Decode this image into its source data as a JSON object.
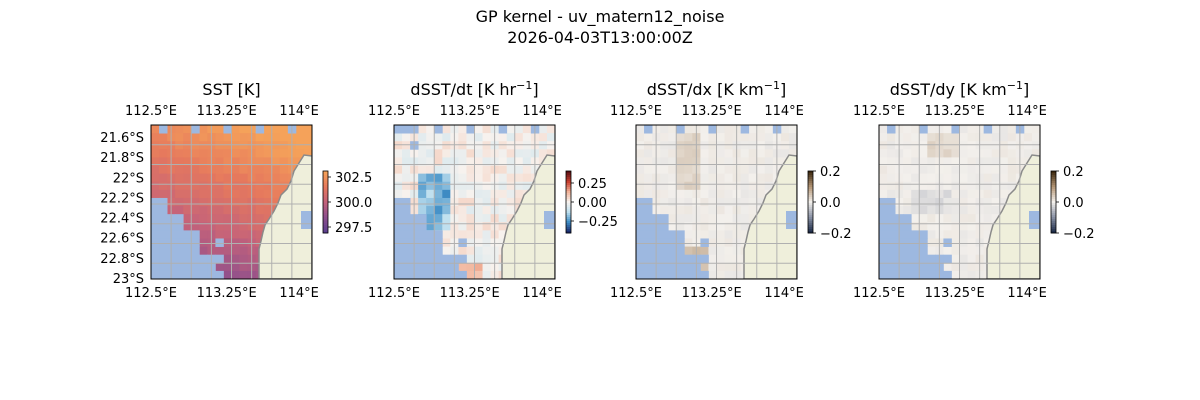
{
  "figure": {
    "title_line1": "GP kernel - uv_matern12_noise",
    "title_line2": "2026-04-03T13:00:00Z"
  },
  "colors": {
    "land": "#efefdb",
    "coast": "#8a8a8a",
    "ocean_mask": "#9db8e0",
    "grid": "#b0b0b0",
    "sst_colormap": [
      "#5c3f8f",
      "#8e4f8c",
      "#c4627a",
      "#e6795d",
      "#f5a25a"
    ],
    "balance_colormap": [
      "#1a2a6c",
      "#3f8ec6",
      "#bfe0ef",
      "#f7f2ee",
      "#f2b49a",
      "#c8402f",
      "#5e1014"
    ],
    "diff_colormap": [
      "#1f2d4a",
      "#8b93a6",
      "#f3f0ec",
      "#b49676",
      "#3e2a10"
    ]
  },
  "chart_data": [
    {
      "type": "heatmap",
      "title": "SST [K]",
      "lon_range": [
        112.5,
        114.1
      ],
      "lat_range": [
        -23.0,
        -21.5
      ],
      "x_ticks": [
        "112.5°E",
        "113.25°E",
        "114°E"
      ],
      "y_ticks": [
        "21.6°S",
        "21.8°S",
        "22°S",
        "22.2°S",
        "22.4°S",
        "22.6°S",
        "22.8°S",
        "23°S"
      ],
      "colorbar": {
        "range": [
          297.0,
          303.5
        ],
        "ticks": [
          "302.5",
          "300.0",
          "297.5"
        ]
      },
      "grid": true
    },
    {
      "type": "heatmap",
      "title": "dSST/dt [K hr",
      "title_sup": "−1",
      "title_end": "]",
      "lon_range": [
        112.5,
        114.1
      ],
      "lat_range": [
        -23.0,
        -21.5
      ],
      "x_ticks": [
        "112.5°E",
        "113.25°E",
        "114°E"
      ],
      "colorbar": {
        "range": [
          -0.4,
          0.4
        ],
        "ticks": [
          "0.25",
          "0.00",
          "−0.25"
        ]
      },
      "grid": true
    },
    {
      "type": "heatmap",
      "title": "dSST/dx [K km",
      "title_sup": "−1",
      "title_end": "]",
      "lon_range": [
        112.5,
        114.1
      ],
      "lat_range": [
        -23.0,
        -21.5
      ],
      "x_ticks": [
        "112.5°E",
        "113.25°E",
        "114°E"
      ],
      "colorbar": {
        "range": [
          -0.2,
          0.2
        ],
        "ticks": [
          "0.2",
          "0.0",
          "−0.2"
        ]
      },
      "grid": true
    },
    {
      "type": "heatmap",
      "title": "dSST/dy [K km",
      "title_sup": "−1",
      "title_end": "]",
      "lon_range": [
        112.5,
        114.1
      ],
      "lat_range": [
        -23.0,
        -21.5
      ],
      "x_ticks": [
        "112.5°E",
        "113.25°E",
        "114°E"
      ],
      "colorbar": {
        "range": [
          -0.2,
          0.2
        ],
        "ticks": [
          "0.2",
          "0.0",
          "−0.2"
        ]
      },
      "grid": true
    }
  ]
}
